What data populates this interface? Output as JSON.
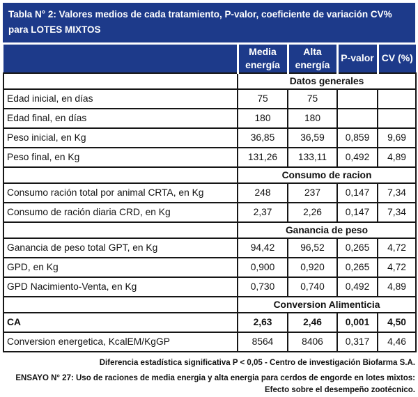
{
  "colors": {
    "header_bg": "#1d3a8a",
    "header_text": "#ffffff",
    "body_border": "#161616",
    "body_text": "#111111"
  },
  "title": "Tabla N° 2: Valores medios de cada tratamiento, P-valor, coeficiente de variación CV% para LOTES MIXTOS",
  "column_headers": [
    "Media energía",
    "Alta energía",
    "P-valor",
    "CV (%)"
  ],
  "sections": [
    {
      "header": "Datos generales",
      "rows": [
        {
          "label": "Edad inicial, en días",
          "values": [
            "75",
            "75",
            "",
            ""
          ]
        },
        {
          "label": "Edad final, en días",
          "values": [
            "180",
            "180",
            "",
            ""
          ]
        },
        {
          "label": "Peso inicial, en Kg",
          "values": [
            "36,85",
            "36,59",
            "0,859",
            "9,69"
          ]
        },
        {
          "label": "Peso final, en Kg",
          "values": [
            "131,26",
            "133,11",
            "0,492",
            "4,89"
          ]
        }
      ]
    },
    {
      "header": "Consumo de racion",
      "rows": [
        {
          "label": "Consumo ración total por animal CRTA, en Kg",
          "values": [
            "248",
            "237",
            "0,147",
            "7,34"
          ]
        },
        {
          "label": "Consumo de ración diaria CRD, en Kg",
          "values": [
            "2,37",
            "2,26",
            "0,147",
            "7,34"
          ]
        }
      ]
    },
    {
      "header": "Ganancia de peso",
      "rows": [
        {
          "label": "Ganancia de peso total GPT, en Kg",
          "values": [
            "94,42",
            "96,52",
            "0,265",
            "4,72"
          ]
        },
        {
          "label": "GPD, en Kg",
          "values": [
            "0,900",
            "0,920",
            "0,265",
            "4,72"
          ]
        },
        {
          "label": "GPD Nacimiento-Venta, en Kg",
          "values": [
            "0,730",
            "0,740",
            "0,492",
            "4,89"
          ]
        }
      ]
    },
    {
      "header": "Conversion Alimenticia",
      "rows": [
        {
          "label": "CA",
          "values": [
            "2,63",
            "2,46",
            "0,001",
            "4,50"
          ]
        },
        {
          "label": "Conversion energetica, KcalEM/KgGP",
          "values": [
            "8564",
            "8406",
            "0,317",
            "4,46"
          ]
        }
      ]
    }
  ],
  "footer": {
    "note_significance": "Diferencia estadística significativa P < 0,05 - Centro de investigación Biofarma S.A.",
    "note_trial": "ENSAYO N° 27: Uso de raciones de media energia y alta energia para cerdos de engorde en lotes mixtos: Efecto sobre el desempeño zootécnico."
  }
}
